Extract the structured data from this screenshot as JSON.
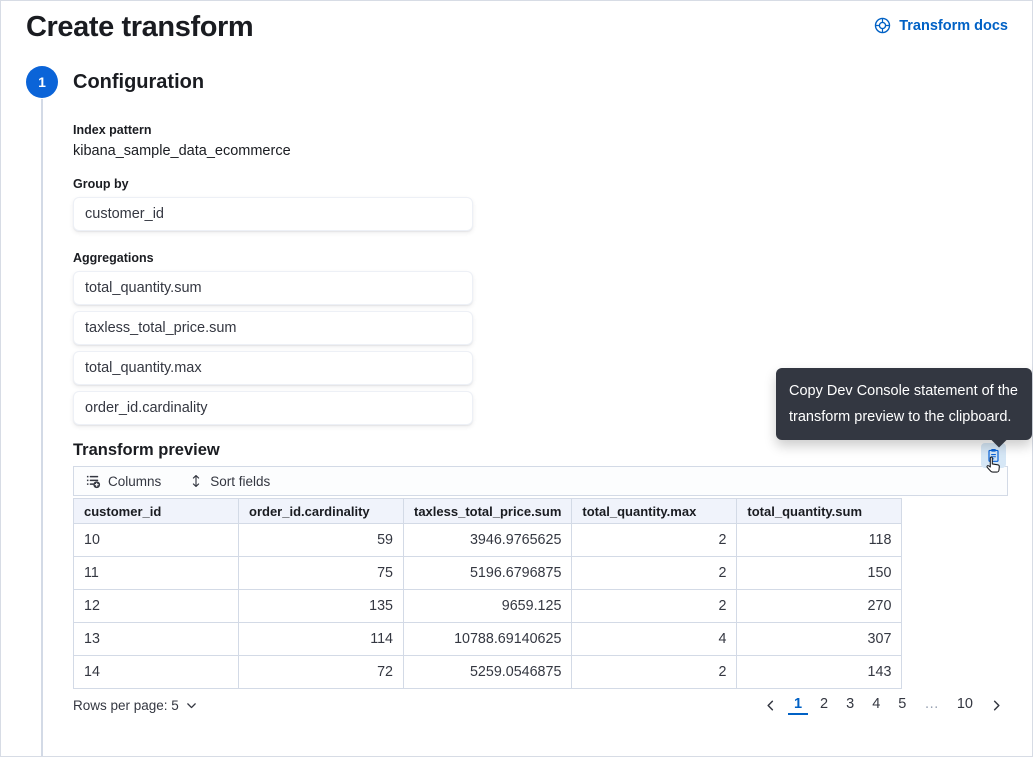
{
  "page": {
    "title": "Create transform",
    "docs_link_label": "Transform docs"
  },
  "step": {
    "number": "1",
    "heading": "Configuration"
  },
  "form": {
    "index_pattern_label": "Index pattern",
    "index_pattern_value": "kibana_sample_data_ecommerce",
    "group_by_label": "Group by",
    "group_by_value": "customer_id",
    "aggregations_label": "Aggregations",
    "aggregation_items": [
      "total_quantity.sum",
      "taxless_total_price.sum",
      "total_quantity.max",
      "order_id.cardinality"
    ]
  },
  "tooltip": {
    "text": "Copy Dev Console statement of the transform preview to the clipboard."
  },
  "preview": {
    "heading": "Transform preview",
    "toolbar": {
      "columns_label": "Columns",
      "sort_label": "Sort fields"
    },
    "table": {
      "columns": [
        "customer_id",
        "order_id.cardinality",
        "taxless_total_price.sum",
        "total_quantity.max",
        "total_quantity.sum"
      ],
      "rows": [
        [
          "10",
          "59",
          "3946.9765625",
          "2",
          "118"
        ],
        [
          "11",
          "75",
          "5196.6796875",
          "2",
          "150"
        ],
        [
          "12",
          "135",
          "9659.125",
          "2",
          "270"
        ],
        [
          "13",
          "114",
          "10788.69140625",
          "4",
          "307"
        ],
        [
          "14",
          "72",
          "5259.0546875",
          "2",
          "143"
        ]
      ]
    },
    "footer": {
      "rows_per_page_label": "Rows per page: 5",
      "pages": [
        "1",
        "2",
        "3",
        "4",
        "5",
        "…",
        "10"
      ],
      "active_page": "1"
    }
  },
  "colors": {
    "link_blue": "#0061c5",
    "step_circle_blue": "#0b64d8",
    "tooltip_bg": "#333741",
    "table_header_bg": "#f0f3fb",
    "border": "#d3dae6",
    "copy_button_bg": "#d6e7f6"
  }
}
